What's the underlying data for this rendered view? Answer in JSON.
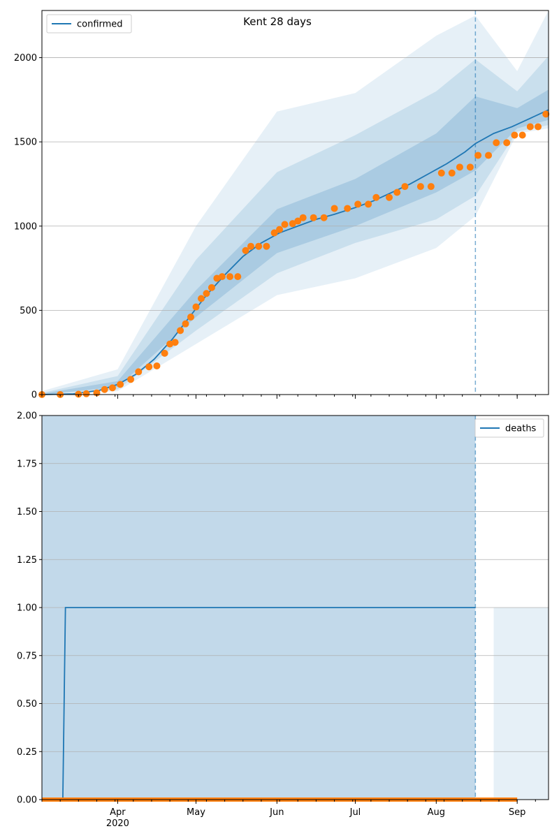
{
  "figure": {
    "title": "Kent 28 days"
  },
  "x_axis": {
    "tick_labels": [
      {
        "date": "2020-04-01",
        "label": "Apr"
      },
      {
        "date": "2020-05-01",
        "label": "May"
      },
      {
        "date": "2020-06-01",
        "label": "Jun"
      },
      {
        "date": "2020-07-01",
        "label": "Jul"
      },
      {
        "date": "2020-08-01",
        "label": "Aug"
      },
      {
        "date": "2020-09-01",
        "label": "Sep"
      }
    ],
    "year_label": "2020",
    "xlim": [
      "2020-03-03",
      "2020-09-13"
    ]
  },
  "colors": {
    "line": "#1f77b4",
    "observed": "#ff7f0e",
    "band": "#1f77b4",
    "grid": "#b0b0b0"
  },
  "chart_data": [
    {
      "type": "line",
      "title": "Kent 28 days",
      "legend": {
        "label": "confirmed",
        "placement": "top-left"
      },
      "ylim": [
        0,
        2280
      ],
      "yticks": [
        "0",
        "500",
        "1000",
        "1500",
        "2000"
      ],
      "grid": "y",
      "forecast_start": "2020-08-16",
      "series": [
        {
          "name": "confirmed",
          "role": "median-model",
          "points": [
            [
              "2020-03-03",
              0
            ],
            [
              "2020-03-15",
              4
            ],
            [
              "2020-03-25",
              25
            ],
            [
              "2020-04-01",
              60
            ],
            [
              "2020-04-08",
              120
            ],
            [
              "2020-04-15",
              210
            ],
            [
              "2020-04-22",
              330
            ],
            [
              "2020-04-29",
              470
            ],
            [
              "2020-05-05",
              590
            ],
            [
              "2020-05-12",
              710
            ],
            [
              "2020-05-19",
              820
            ],
            [
              "2020-05-26",
              900
            ],
            [
              "2020-06-02",
              960
            ],
            [
              "2020-06-09",
              1000
            ],
            [
              "2020-06-16",
              1040
            ],
            [
              "2020-06-23",
              1070
            ],
            [
              "2020-07-01",
              1110
            ],
            [
              "2020-07-08",
              1150
            ],
            [
              "2020-07-15",
              1200
            ],
            [
              "2020-07-22",
              1250
            ],
            [
              "2020-07-29",
              1310
            ],
            [
              "2020-08-05",
              1370
            ],
            [
              "2020-08-12",
              1440
            ],
            [
              "2020-08-16",
              1490
            ],
            [
              "2020-08-23",
              1550
            ],
            [
              "2020-08-30",
              1590
            ],
            [
              "2020-09-06",
              1640
            ],
            [
              "2020-09-13",
              1690
            ]
          ]
        },
        {
          "name": "observed",
          "role": "observed-points",
          "points": [
            [
              "2020-03-03",
              0
            ],
            [
              "2020-03-10",
              0
            ],
            [
              "2020-03-17",
              2
            ],
            [
              "2020-03-20",
              5
            ],
            [
              "2020-03-24",
              10
            ],
            [
              "2020-03-27",
              30
            ],
            [
              "2020-03-30",
              40
            ],
            [
              "2020-04-02",
              60
            ],
            [
              "2020-04-06",
              90
            ],
            [
              "2020-04-09",
              135
            ],
            [
              "2020-04-13",
              165
            ],
            [
              "2020-04-16",
              170
            ],
            [
              "2020-04-19",
              245
            ],
            [
              "2020-04-21",
              300
            ],
            [
              "2020-04-23",
              310
            ],
            [
              "2020-04-25",
              380
            ],
            [
              "2020-04-27",
              420
            ],
            [
              "2020-04-29",
              460
            ],
            [
              "2020-05-01",
              520
            ],
            [
              "2020-05-03",
              570
            ],
            [
              "2020-05-05",
              600
            ],
            [
              "2020-05-07",
              635
            ],
            [
              "2020-05-09",
              690
            ],
            [
              "2020-05-11",
              700
            ],
            [
              "2020-05-14",
              700
            ],
            [
              "2020-05-17",
              700
            ],
            [
              "2020-05-20",
              855
            ],
            [
              "2020-05-22",
              880
            ],
            [
              "2020-05-25",
              880
            ],
            [
              "2020-05-28",
              880
            ],
            [
              "2020-05-31",
              960
            ],
            [
              "2020-06-02",
              980
            ],
            [
              "2020-06-04",
              1010
            ],
            [
              "2020-06-07",
              1015
            ],
            [
              "2020-06-09",
              1030
            ],
            [
              "2020-06-11",
              1050
            ],
            [
              "2020-06-15",
              1050
            ],
            [
              "2020-06-19",
              1050
            ],
            [
              "2020-06-23",
              1105
            ],
            [
              "2020-06-28",
              1105
            ],
            [
              "2020-07-02",
              1130
            ],
            [
              "2020-07-06",
              1130
            ],
            [
              "2020-07-09",
              1170
            ],
            [
              "2020-07-14",
              1170
            ],
            [
              "2020-07-17",
              1200
            ],
            [
              "2020-07-20",
              1235
            ],
            [
              "2020-07-26",
              1235
            ],
            [
              "2020-07-30",
              1235
            ],
            [
              "2020-08-03",
              1315
            ],
            [
              "2020-08-07",
              1315
            ],
            [
              "2020-08-10",
              1350
            ],
            [
              "2020-08-14",
              1350
            ],
            [
              "2020-08-17",
              1420
            ],
            [
              "2020-08-21",
              1420
            ],
            [
              "2020-08-24",
              1495
            ],
            [
              "2020-08-28",
              1495
            ],
            [
              "2020-08-31",
              1540
            ],
            [
              "2020-09-03",
              1540
            ],
            [
              "2020-09-06",
              1590
            ],
            [
              "2020-09-09",
              1590
            ],
            [
              "2020-09-12",
              1665
            ]
          ]
        }
      ],
      "bands": [
        {
          "level": "outer",
          "lower": [
            [
              "2020-03-03",
              0
            ],
            [
              "2020-04-01",
              20
            ],
            [
              "2020-05-01",
              300
            ],
            [
              "2020-06-01",
              590
            ],
            [
              "2020-07-01",
              690
            ],
            [
              "2020-08-01",
              870
            ],
            [
              "2020-08-16",
              1060
            ],
            [
              "2020-09-01",
              1550
            ],
            [
              "2020-09-13",
              1580
            ]
          ],
          "upper": [
            [
              "2020-03-03",
              20
            ],
            [
              "2020-04-01",
              150
            ],
            [
              "2020-05-01",
              1000
            ],
            [
              "2020-06-01",
              1680
            ],
            [
              "2020-07-01",
              1790
            ],
            [
              "2020-08-01",
              2130
            ],
            [
              "2020-08-16",
              2250
            ],
            [
              "2020-09-01",
              1920
            ],
            [
              "2020-09-13",
              2280
            ]
          ]
        },
        {
          "level": "middle",
          "lower": [
            [
              "2020-03-03",
              0
            ],
            [
              "2020-04-01",
              30
            ],
            [
              "2020-05-01",
              380
            ],
            [
              "2020-06-01",
              720
            ],
            [
              "2020-07-01",
              900
            ],
            [
              "2020-08-01",
              1040
            ],
            [
              "2020-08-16",
              1180
            ],
            [
              "2020-09-01",
              1560
            ],
            [
              "2020-09-13",
              1600
            ]
          ],
          "upper": [
            [
              "2020-03-03",
              10
            ],
            [
              "2020-04-01",
              110
            ],
            [
              "2020-05-01",
              800
            ],
            [
              "2020-06-01",
              1320
            ],
            [
              "2020-07-01",
              1540
            ],
            [
              "2020-08-01",
              1800
            ],
            [
              "2020-08-16",
              1990
            ],
            [
              "2020-09-01",
              1800
            ],
            [
              "2020-09-13",
              2010
            ]
          ]
        },
        {
          "level": "inner",
          "lower": [
            [
              "2020-03-03",
              0
            ],
            [
              "2020-04-01",
              45
            ],
            [
              "2020-05-01",
              460
            ],
            [
              "2020-06-01",
              840
            ],
            [
              "2020-07-01",
              1000
            ],
            [
              "2020-08-01",
              1200
            ],
            [
              "2020-08-16",
              1330
            ],
            [
              "2020-09-01",
              1580
            ],
            [
              "2020-09-13",
              1630
            ]
          ],
          "upper": [
            [
              "2020-03-03",
              5
            ],
            [
              "2020-04-01",
              80
            ],
            [
              "2020-05-01",
              620
            ],
            [
              "2020-06-01",
              1100
            ],
            [
              "2020-07-01",
              1280
            ],
            [
              "2020-08-01",
              1550
            ],
            [
              "2020-08-16",
              1770
            ],
            [
              "2020-09-01",
              1700
            ],
            [
              "2020-09-13",
              1810
            ]
          ]
        }
      ]
    },
    {
      "type": "line",
      "legend": {
        "label": "deaths",
        "placement": "top-right"
      },
      "ylim": [
        0,
        2
      ],
      "yticks": [
        "0.00",
        "0.25",
        "0.50",
        "0.75",
        "1.00",
        "1.25",
        "1.50",
        "1.75",
        "2.00"
      ],
      "grid": "y",
      "forecast_start": "2020-08-16",
      "series": [
        {
          "name": "deaths",
          "role": "median-model",
          "points": [
            [
              "2020-03-03",
              0
            ],
            [
              "2020-03-11",
              0
            ],
            [
              "2020-03-12",
              1
            ],
            [
              "2020-08-16",
              1
            ]
          ]
        },
        {
          "name": "observed",
          "role": "observed-points",
          "points": [
            [
              "2020-03-03",
              0
            ],
            [
              "2020-09-01",
              0
            ]
          ]
        }
      ],
      "bands": [
        {
          "level": "outer",
          "lower": [
            [
              "2020-03-03",
              0
            ],
            [
              "2020-08-16",
              0
            ]
          ],
          "upper": [
            [
              "2020-03-03",
              2
            ],
            [
              "2020-08-16",
              2
            ]
          ]
        },
        {
          "level": "inner",
          "lower": [
            [
              "2020-03-03",
              0
            ],
            [
              "2020-08-16",
              0
            ]
          ],
          "upper": [
            [
              "2020-03-03",
              2
            ],
            [
              "2020-08-16",
              2
            ]
          ]
        },
        {
          "level": "forecast-outer",
          "lower": [
            [
              "2020-08-23",
              0
            ],
            [
              "2020-09-13",
              0
            ]
          ],
          "upper": [
            [
              "2020-08-23",
              1
            ],
            [
              "2020-09-13",
              1
            ]
          ]
        }
      ]
    }
  ]
}
